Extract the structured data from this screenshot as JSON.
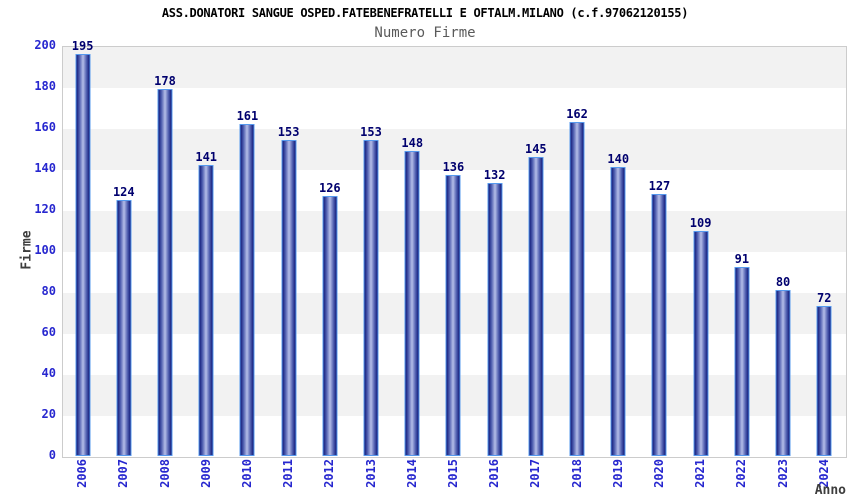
{
  "chart_data": {
    "type": "bar",
    "title": "ASS.DONATORI SANGUE OSPED.FATEBENEFRATELLI E OFTALM.MILANO (c.f.97062120155)",
    "subtitle": "Numero Firme",
    "xlabel": "Anno",
    "ylabel": "Firme",
    "categories": [
      "2006",
      "2007",
      "2008",
      "2009",
      "2010",
      "2011",
      "2012",
      "2013",
      "2014",
      "2015",
      "2016",
      "2017",
      "2018",
      "2019",
      "2020",
      "2021",
      "2022",
      "2023",
      "2024"
    ],
    "values": [
      195,
      124,
      178,
      141,
      161,
      153,
      126,
      153,
      148,
      136,
      132,
      145,
      162,
      140,
      127,
      109,
      91,
      80,
      72
    ],
    "ylim": [
      0,
      200
    ],
    "yticks": [
      0,
      20,
      40,
      60,
      80,
      100,
      120,
      140,
      160,
      180,
      200
    ],
    "grid": "alternating horizontal bands every 20 units, gray/white, gray starts at top (200-180)",
    "legend_position": "none",
    "data_labels": "value shown above each bar"
  },
  "colors": {
    "title": "#000000",
    "subtitle": "#5a5a5a",
    "axis_label": "#2727cf",
    "value_label": "#00006e",
    "axis_title": "#3d3d3d",
    "band_gray": "#f2f2f2",
    "plot_border": "#cccccc",
    "bar_border": "#5599ee",
    "bar_edge": "#111a78",
    "bar_mid": "#4d5cae",
    "bar_center": "#b4bde8"
  }
}
